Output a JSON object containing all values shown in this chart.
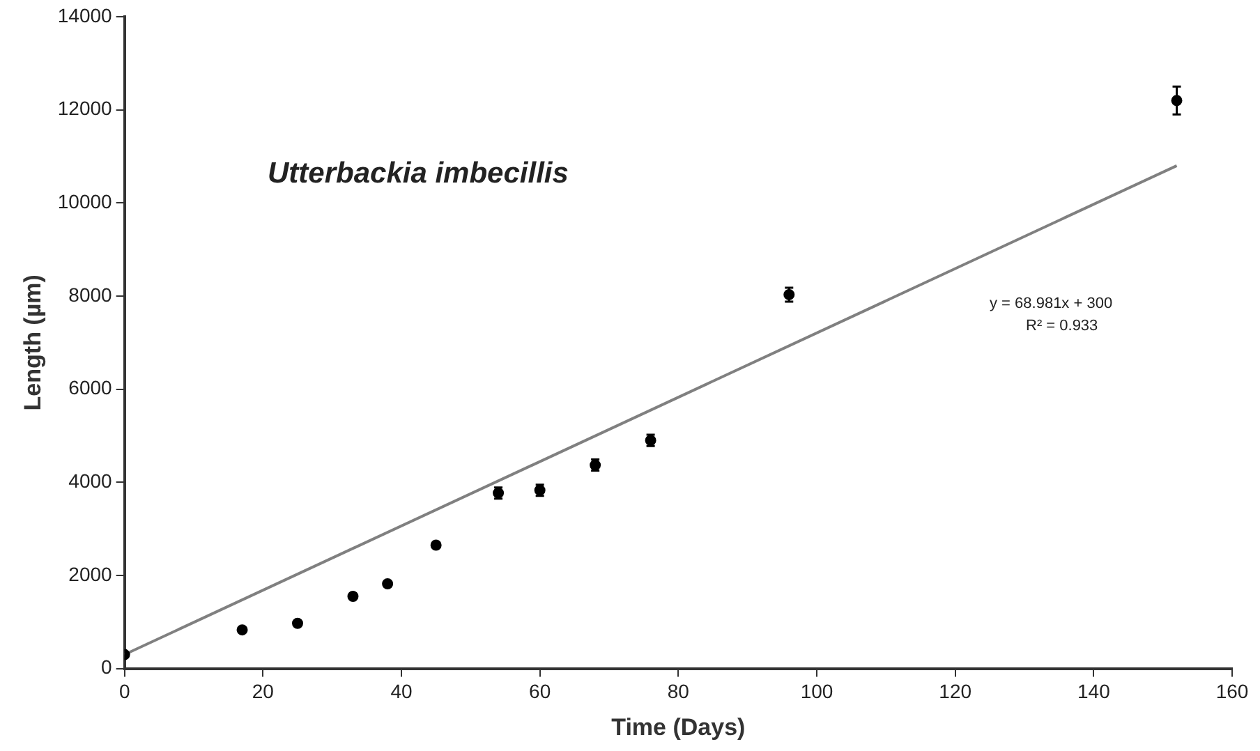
{
  "chart_data": {
    "type": "scatter",
    "xlabel": "Time (Days)",
    "ylabel": "Length (µm)",
    "annotations": [
      "Utterbackia imbecillis",
      "y = 68.981x + 300",
      "R² = 0.933"
    ],
    "series": [
      {
        "color": "#000000",
        "x": [
          0,
          17,
          25,
          33,
          38,
          45,
          54,
          60,
          68,
          76,
          96,
          152
        ],
        "values": [
          300,
          830,
          970,
          1550,
          1820,
          2650,
          3770,
          3830,
          4370,
          4900,
          8030,
          12200
        ],
        "errors": [
          null,
          null,
          null,
          null,
          null,
          null,
          120,
          120,
          120,
          120,
          150,
          300
        ]
      },
      {
        "type": "line",
        "marker": "none",
        "color": "#808080",
        "x": [
          0,
          152
        ],
        "values": [
          300,
          10800
        ]
      }
    ],
    "xlim": [
      0,
      160
    ],
    "xticks": [
      0,
      20,
      40,
      60,
      80,
      100,
      120,
      140,
      160
    ],
    "ylim": [
      0,
      14000
    ],
    "yticks": [
      0,
      2000,
      4000,
      6000,
      8000,
      10000,
      12000,
      14000
    ],
    "grid": false,
    "legend": false,
    "marker": "circle"
  }
}
